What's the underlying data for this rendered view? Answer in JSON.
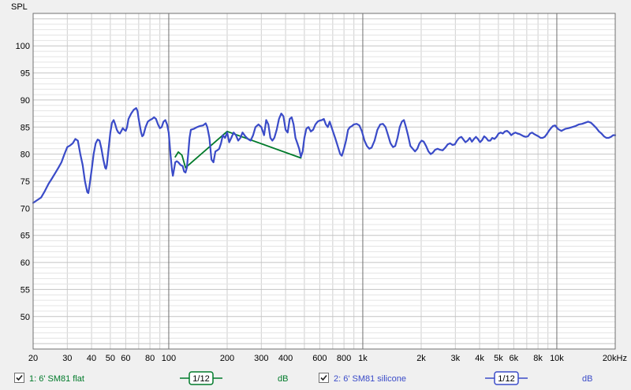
{
  "chart_data": {
    "type": "line",
    "ylabel": "SPL",
    "xscale": "log",
    "xlim": [
      20,
      20000
    ],
    "ylim": [
      44,
      106
    ],
    "yticks": [
      50,
      55,
      60,
      65,
      70,
      75,
      80,
      85,
      90,
      95,
      100
    ],
    "xticks": [
      {
        "v": 20,
        "l": "20"
      },
      {
        "v": 30,
        "l": "30"
      },
      {
        "v": 40,
        "l": "40"
      },
      {
        "v": 50,
        "l": "50"
      },
      {
        "v": 60,
        "l": "60"
      },
      {
        "v": 80,
        "l": "80"
      },
      {
        "v": 100,
        "l": "100"
      },
      {
        "v": 200,
        "l": "200"
      },
      {
        "v": 300,
        "l": "300"
      },
      {
        "v": 400,
        "l": "400"
      },
      {
        "v": 600,
        "l": "600"
      },
      {
        "v": 800,
        "l": "800"
      },
      {
        "v": 1000,
        "l": "1k"
      },
      {
        "v": 2000,
        "l": "2k"
      },
      {
        "v": 3000,
        "l": "3k"
      },
      {
        "v": 4000,
        "l": "4k"
      },
      {
        "v": 5000,
        "l": "5k"
      },
      {
        "v": 6000,
        "l": "6k"
      },
      {
        "v": 8000,
        "l": "8k"
      },
      {
        "v": 10000,
        "l": "10k"
      },
      {
        "v": 20000,
        "l": "20kHz"
      }
    ],
    "grid": true,
    "series": [
      {
        "name": "1: 6' SM81 flat",
        "color": "#007a2a",
        "points": [
          [
            108,
            79.5
          ],
          [
            112,
            80.4
          ],
          [
            117,
            79.8
          ],
          [
            122,
            77.5
          ],
          [
            200,
            84.2
          ],
          [
            480,
            79.3
          ]
        ]
      },
      {
        "name": "2: 6' SM81 silicone",
        "color": "#3a4bc8",
        "points": [
          [
            20,
            71
          ],
          [
            21,
            71.5
          ],
          [
            22,
            72
          ],
          [
            23,
            73.2
          ],
          [
            24,
            74.5
          ],
          [
            25,
            75.5
          ],
          [
            26,
            76.5
          ],
          [
            27,
            77.5
          ],
          [
            28,
            78.5
          ],
          [
            29,
            80
          ],
          [
            30,
            81.3
          ],
          [
            31,
            81.6
          ],
          [
            32,
            82
          ],
          [
            33,
            82.8
          ],
          [
            34,
            82.5
          ],
          [
            35,
            80
          ],
          [
            36,
            78
          ],
          [
            37,
            75
          ],
          [
            38,
            73
          ],
          [
            38.5,
            72.8
          ],
          [
            39,
            74
          ],
          [
            40,
            77
          ],
          [
            41,
            80
          ],
          [
            42,
            82
          ],
          [
            43,
            82.7
          ],
          [
            44,
            82.5
          ],
          [
            45,
            81
          ],
          [
            46,
            79
          ],
          [
            47,
            77.5
          ],
          [
            47.5,
            77.3
          ],
          [
            48,
            78
          ],
          [
            49,
            81
          ],
          [
            50,
            84
          ],
          [
            51,
            85.8
          ],
          [
            52,
            86.3
          ],
          [
            53,
            85.5
          ],
          [
            54,
            84.5
          ],
          [
            55,
            84
          ],
          [
            56,
            83.8
          ],
          [
            57,
            84.3
          ],
          [
            58,
            84.8
          ],
          [
            59,
            84.5
          ],
          [
            60,
            84.3
          ],
          [
            61,
            85
          ],
          [
            62,
            86.5
          ],
          [
            64,
            87.5
          ],
          [
            66,
            88.2
          ],
          [
            68,
            88.5
          ],
          [
            69,
            88
          ],
          [
            70,
            86.5
          ],
          [
            72,
            84
          ],
          [
            73,
            83.3
          ],
          [
            74,
            83.5
          ],
          [
            76,
            85
          ],
          [
            78,
            86
          ],
          [
            80,
            86.3
          ],
          [
            82,
            86.5
          ],
          [
            84,
            86.8
          ],
          [
            86,
            86.5
          ],
          [
            88,
            85.5
          ],
          [
            90,
            84.8
          ],
          [
            92,
            85
          ],
          [
            94,
            86
          ],
          [
            96,
            86.3
          ],
          [
            98,
            85.5
          ],
          [
            100,
            84
          ],
          [
            102,
            80
          ],
          [
            104,
            77
          ],
          [
            105,
            76
          ],
          [
            106,
            76.8
          ],
          [
            108,
            78.5
          ],
          [
            110,
            78.7
          ],
          [
            112,
            78.5
          ],
          [
            115,
            78
          ],
          [
            118,
            77.8
          ],
          [
            120,
            76.8
          ],
          [
            122,
            76.6
          ],
          [
            124,
            77.5
          ],
          [
            126,
            80
          ],
          [
            128,
            83
          ],
          [
            130,
            84.5
          ],
          [
            135,
            84.7
          ],
          [
            140,
            85
          ],
          [
            145,
            85.2
          ],
          [
            150,
            85.3
          ],
          [
            155,
            85.7
          ],
          [
            158,
            85
          ],
          [
            162,
            83
          ],
          [
            166,
            79
          ],
          [
            170,
            78.5
          ],
          [
            174,
            80.5
          ],
          [
            178,
            80.7
          ],
          [
            182,
            81
          ],
          [
            186,
            82
          ],
          [
            190,
            83.5
          ],
          [
            195,
            83
          ],
          [
            200,
            84
          ],
          [
            205,
            82.2
          ],
          [
            210,
            83
          ],
          [
            216,
            84
          ],
          [
            222,
            83.5
          ],
          [
            228,
            82.5
          ],
          [
            234,
            83
          ],
          [
            240,
            84
          ],
          [
            248,
            83.3
          ],
          [
            256,
            82.8
          ],
          [
            264,
            82.5
          ],
          [
            272,
            83.5
          ],
          [
            280,
            85
          ],
          [
            290,
            85.5
          ],
          [
            300,
            85
          ],
          [
            310,
            83.5
          ],
          [
            318,
            86.3
          ],
          [
            326,
            85.5
          ],
          [
            334,
            83
          ],
          [
            342,
            82.5
          ],
          [
            350,
            83
          ],
          [
            360,
            84.5
          ],
          [
            370,
            86.5
          ],
          [
            380,
            87.5
          ],
          [
            390,
            87
          ],
          [
            400,
            84.5
          ],
          [
            410,
            84
          ],
          [
            420,
            86.5
          ],
          [
            430,
            86.8
          ],
          [
            440,
            85.5
          ],
          [
            450,
            83
          ],
          [
            460,
            82
          ],
          [
            470,
            81
          ],
          [
            480,
            79.5
          ],
          [
            490,
            80.5
          ],
          [
            500,
            83
          ],
          [
            512,
            84.7
          ],
          [
            525,
            85
          ],
          [
            540,
            84.2
          ],
          [
            555,
            84.5
          ],
          [
            570,
            85.5
          ],
          [
            585,
            86
          ],
          [
            600,
            86.2
          ],
          [
            615,
            86.3
          ],
          [
            630,
            86.5
          ],
          [
            645,
            85.5
          ],
          [
            660,
            85
          ],
          [
            675,
            86
          ],
          [
            690,
            85
          ],
          [
            705,
            84
          ],
          [
            720,
            83
          ],
          [
            735,
            82
          ],
          [
            750,
            81
          ],
          [
            765,
            80
          ],
          [
            780,
            79.7
          ],
          [
            800,
            81
          ],
          [
            820,
            82.5
          ],
          [
            840,
            84.5
          ],
          [
            860,
            85
          ],
          [
            880,
            85.2
          ],
          [
            900,
            85.5
          ],
          [
            930,
            85.6
          ],
          [
            960,
            85.3
          ],
          [
            990,
            84.2
          ],
          [
            1020,
            82.5
          ],
          [
            1050,
            81.5
          ],
          [
            1080,
            81
          ],
          [
            1110,
            81.2
          ],
          [
            1150,
            82.5
          ],
          [
            1190,
            84.5
          ],
          [
            1230,
            85.5
          ],
          [
            1270,
            85.6
          ],
          [
            1310,
            85
          ],
          [
            1350,
            83.5
          ],
          [
            1390,
            82
          ],
          [
            1430,
            81.3
          ],
          [
            1470,
            81.5
          ],
          [
            1510,
            83
          ],
          [
            1550,
            85
          ],
          [
            1590,
            86
          ],
          [
            1630,
            86.3
          ],
          [
            1670,
            85
          ],
          [
            1710,
            83.5
          ],
          [
            1760,
            81.5
          ],
          [
            1810,
            81
          ],
          [
            1860,
            80.5
          ],
          [
            1910,
            81
          ],
          [
            1960,
            82
          ],
          [
            2010,
            82.5
          ],
          [
            2060,
            82.3
          ],
          [
            2120,
            81.5
          ],
          [
            2180,
            80.5
          ],
          [
            2240,
            80
          ],
          [
            2300,
            80.3
          ],
          [
            2360,
            80.8
          ],
          [
            2430,
            81
          ],
          [
            2500,
            80.8
          ],
          [
            2580,
            80.7
          ],
          [
            2660,
            81.2
          ],
          [
            2740,
            81.8
          ],
          [
            2820,
            82
          ],
          [
            2900,
            81.7
          ],
          [
            2980,
            81.8
          ],
          [
            3060,
            82.5
          ],
          [
            3140,
            83
          ],
          [
            3220,
            83.2
          ],
          [
            3300,
            82.7
          ],
          [
            3380,
            82.2
          ],
          [
            3470,
            82.5
          ],
          [
            3560,
            83
          ],
          [
            3650,
            82.3
          ],
          [
            3740,
            82.8
          ],
          [
            3830,
            83.2
          ],
          [
            3920,
            82.8
          ],
          [
            4020,
            82.2
          ],
          [
            4120,
            82.6
          ],
          [
            4220,
            83.3
          ],
          [
            4320,
            83
          ],
          [
            4430,
            82.5
          ],
          [
            4540,
            82.5
          ],
          [
            4650,
            83
          ],
          [
            4770,
            82.8
          ],
          [
            4890,
            83.2
          ],
          [
            5010,
            83.8
          ],
          [
            5140,
            84
          ],
          [
            5270,
            83.8
          ],
          [
            5400,
            84.2
          ],
          [
            5540,
            84.3
          ],
          [
            5680,
            84
          ],
          [
            5820,
            83.5
          ],
          [
            5970,
            83.8
          ],
          [
            6120,
            84
          ],
          [
            6270,
            83.8
          ],
          [
            6430,
            83.7
          ],
          [
            6590,
            83.5
          ],
          [
            6760,
            83.3
          ],
          [
            6930,
            83.2
          ],
          [
            7100,
            83.3
          ],
          [
            7280,
            83.8
          ],
          [
            7460,
            84
          ],
          [
            7650,
            83.7
          ],
          [
            7840,
            83.5
          ],
          [
            8040,
            83.3
          ],
          [
            8240,
            83
          ],
          [
            8450,
            83
          ],
          [
            8660,
            83.2
          ],
          [
            8880,
            83.7
          ],
          [
            9100,
            84.3
          ],
          [
            9330,
            84.8
          ],
          [
            9560,
            85.2
          ],
          [
            9800,
            85.3
          ],
          [
            10050,
            84.8
          ],
          [
            10300,
            84.5
          ],
          [
            10560,
            84.3
          ],
          [
            10820,
            84.5
          ],
          [
            11100,
            84.7
          ],
          [
            11500,
            84.8
          ],
          [
            12000,
            85
          ],
          [
            12500,
            85.2
          ],
          [
            13000,
            85.5
          ],
          [
            13500,
            85.6
          ],
          [
            14000,
            85.8
          ],
          [
            14500,
            86
          ],
          [
            15000,
            85.8
          ],
          [
            15500,
            85.3
          ],
          [
            16000,
            84.8
          ],
          [
            16500,
            84.2
          ],
          [
            17000,
            83.8
          ],
          [
            17500,
            83.3
          ],
          [
            18000,
            83
          ],
          [
            18500,
            83
          ],
          [
            19000,
            83.2
          ],
          [
            19500,
            83.5
          ],
          [
            20000,
            83.5
          ]
        ]
      }
    ]
  },
  "legend": {
    "items": [
      {
        "checked": true,
        "label": "1: 6' SM81 flat",
        "smoothing": "1/12",
        "unit": "dB",
        "color": "#007a2a"
      },
      {
        "checked": true,
        "label": "2: 6' SM81 silicone",
        "smoothing": "1/12",
        "unit": "dB",
        "color": "#3a4bc8"
      }
    ]
  }
}
